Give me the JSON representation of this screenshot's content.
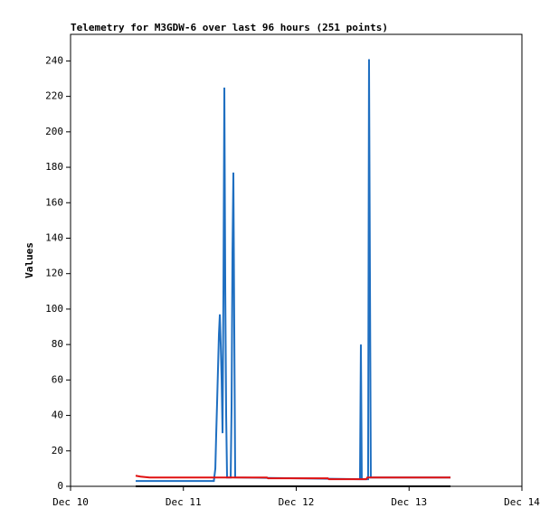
{
  "chart_data": {
    "type": "line",
    "title": "Telemetry for M3GDW-6 over last 96 hours (251 points)",
    "y_label": "Values",
    "xlim": [
      0,
      4
    ],
    "xticks": [
      {
        "value": 0,
        "label": "Dec 10"
      },
      {
        "value": 1,
        "label": "Dec 11"
      },
      {
        "value": 2,
        "label": "Dec 12"
      },
      {
        "value": 3,
        "label": "Dec 13"
      },
      {
        "value": 4,
        "label": "Dec 14"
      }
    ],
    "ylim": [
      0,
      255
    ],
    "yticks": [
      0,
      20,
      40,
      60,
      80,
      100,
      120,
      140,
      160,
      180,
      200,
      220,
      240
    ],
    "series": [
      {
        "color": "#1f6fc1",
        "x": [
          0.577,
          1.27,
          1.283,
          1.291,
          1.299,
          1.307,
          1.315,
          1.323,
          1.331,
          1.339,
          1.347,
          1.355,
          1.363,
          1.371,
          1.379,
          1.387,
          1.419,
          1.427,
          1.435,
          1.443,
          1.451,
          1.459,
          2.565,
          2.573,
          2.581,
          2.637,
          2.645,
          2.653,
          2.661,
          3.367
        ],
        "values": [
          3,
          3,
          10,
          30,
          48,
          67,
          86,
          97,
          80,
          60,
          30,
          112,
          225,
          112,
          40,
          5,
          5,
          45,
          132,
          177,
          88,
          5,
          4,
          80,
          4,
          4,
          241,
          121,
          5,
          5
        ]
      },
      {
        "color": "#e01010",
        "x": [
          0.577,
          0.62,
          0.7,
          1.74,
          1.75,
          2.28,
          2.29,
          2.62,
          2.63,
          3.367
        ],
        "values": [
          6,
          5.5,
          5,
          5,
          4.5,
          4.5,
          4,
          4,
          5,
          5
        ]
      },
      {
        "color": "#000000",
        "x": [
          0.577,
          3.367
        ],
        "values": [
          0,
          0
        ]
      }
    ]
  }
}
